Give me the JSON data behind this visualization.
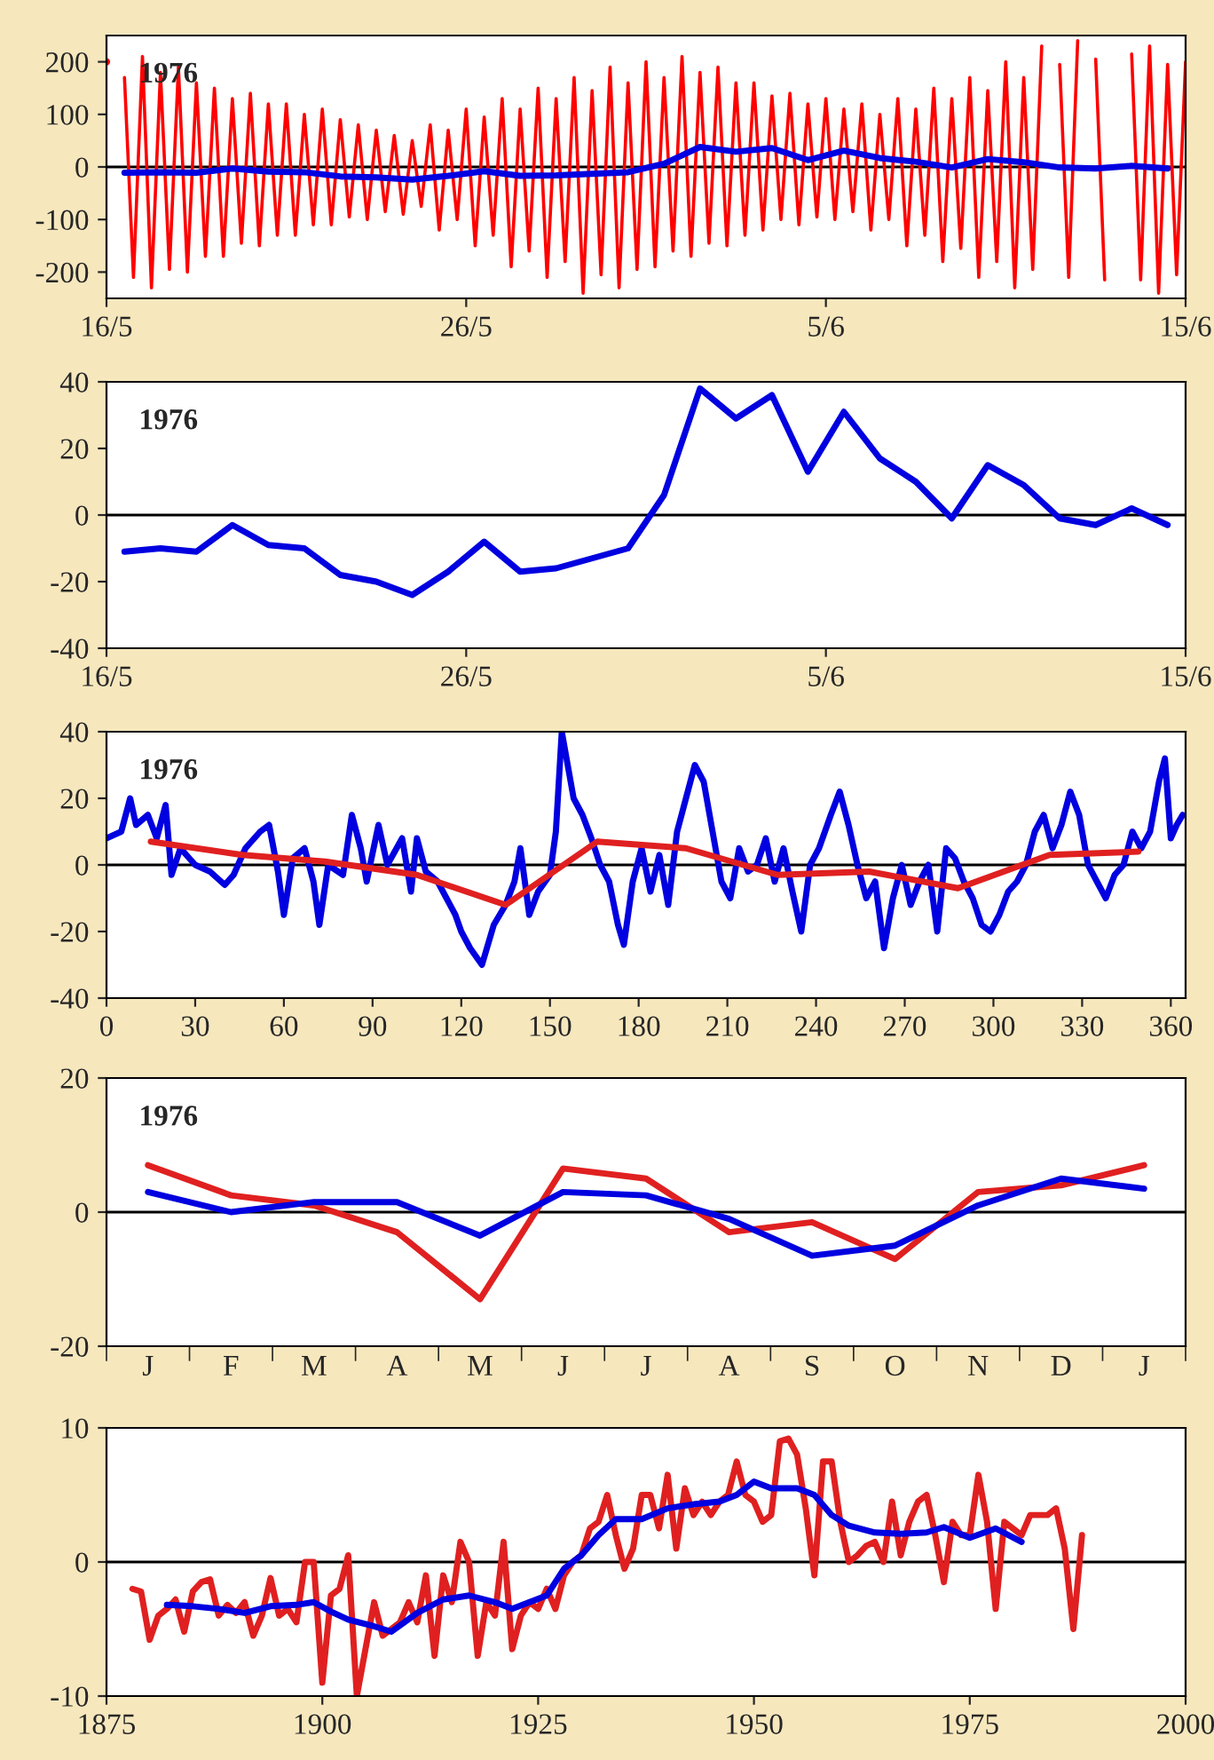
{
  "chart_data": [
    {
      "type": "line",
      "annotations": [
        "1976"
      ],
      "xlim": [
        "1976-05-16",
        "1976-06-15"
      ],
      "xticks": [
        {
          "value": "1976-05-16",
          "label": "16/5"
        },
        {
          "value": "1976-05-26",
          "label": "26/5"
        },
        {
          "value": "1976-06-05",
          "label": "5/6"
        },
        {
          "value": "1976-06-15",
          "label": "15/6"
        }
      ],
      "ylim": [
        -250,
        250
      ],
      "yticks": [
        -200,
        -100,
        0,
        100,
        200
      ],
      "ref_lines": [
        {
          "axis": "y",
          "value": 0,
          "color": "#000000"
        }
      ],
      "grid": false,
      "legend": false,
      "series": [
        {
          "color": "#ff0000",
          "x": [
            "1976-05-16T00:00",
            "1976-05-16T06:00",
            "1976-05-16T12:00",
            "1976-05-16T18:00",
            "1976-05-17T00:00",
            "1976-05-17T06:00",
            "1976-05-17T12:00",
            "1976-05-17T18:00",
            "1976-05-18T00:00",
            "1976-05-18T06:00",
            "1976-05-18T12:00",
            "1976-05-18T18:00",
            "1976-05-19T00:00",
            "1976-05-19T06:00",
            "1976-05-19T12:00",
            "1976-05-19T18:00",
            "1976-05-20T00:00",
            "1976-05-20T06:00",
            "1976-05-20T12:00",
            "1976-05-20T18:00",
            "1976-05-21T00:00",
            "1976-05-21T06:00",
            "1976-05-21T12:00",
            "1976-05-21T18:00",
            "1976-05-22T00:00",
            "1976-05-22T06:00",
            "1976-05-22T12:00",
            "1976-05-22T18:00",
            "1976-05-23T00:00",
            "1976-05-23T06:00",
            "1976-05-23T12:00",
            "1976-05-23T18:00",
            "1976-05-24T00:00",
            "1976-05-24T06:00",
            "1976-05-24T12:00",
            "1976-05-24T18:00",
            "1976-05-25T00:00",
            "1976-05-25T06:00",
            "1976-05-25T12:00",
            "1976-05-25T18:00",
            "1976-05-26T00:00",
            "1976-05-26T06:00",
            "1976-05-26T12:00",
            "1976-05-26T18:00",
            "1976-05-27T00:00",
            "1976-05-27T06:00",
            "1976-05-27T12:00",
            "1976-05-27T18:00",
            "1976-05-28T00:00",
            "1976-05-28T06:00",
            "1976-05-28T12:00",
            "1976-05-28T18:00",
            "1976-05-29T00:00",
            "1976-05-29T06:00",
            "1976-05-29T12:00",
            "1976-05-29T18:00",
            "1976-05-30T00:00",
            "1976-05-30T06:00",
            "1976-05-30T12:00",
            "1976-05-30T18:00",
            "1976-05-31T00:00",
            "1976-05-31T06:00",
            "1976-05-31T12:00",
            "1976-05-31T18:00",
            "1976-06-01T00:00",
            "1976-06-01T06:00",
            "1976-06-01T12:00",
            "1976-06-01T18:00",
            "1976-06-02T00:00",
            "1976-06-02T06:00",
            "1976-06-02T12:00",
            "1976-06-02T18:00",
            "1976-06-03T00:00",
            "1976-06-03T06:00",
            "1976-06-03T12:00",
            "1976-06-03T18:00",
            "1976-06-04T00:00",
            "1976-06-04T06:00",
            "1976-06-04T12:00",
            "1976-06-04T18:00",
            "1976-06-05T00:00",
            "1976-06-05T06:00",
            "1976-06-05T12:00",
            "1976-06-05T18:00",
            "1976-06-06T00:00",
            "1976-06-06T06:00",
            "1976-06-06T12:00",
            "1976-06-06T18:00",
            "1976-06-07T00:00",
            "1976-06-07T06:00",
            "1976-06-07T12:00",
            "1976-06-07T18:00",
            "1976-06-08T00:00",
            "1976-06-08T06:00",
            "1976-06-08T12:00",
            "1976-06-08T18:00",
            "1976-06-09T00:00",
            "1976-06-09T06:00",
            "1976-06-09T12:00",
            "1976-06-09T18:00",
            "1976-06-10T00:00",
            "1976-06-10T06:00",
            "1976-06-10T12:00",
            "1976-06-10T18:00",
            "1976-06-11T00:00",
            "1976-06-11T06:00",
            "1976-06-11T12:00",
            "1976-06-11T18:00",
            "1976-06-12T00:00",
            "1976-06-12T06:00",
            "1976-06-12T12:00",
            "1976-06-12T18:00",
            "1976-06-13T00:00",
            "1976-06-13T06:00",
            "1976-06-13T12:00",
            "1976-06-13T18:00",
            "1976-06-14T00:00",
            "1976-06-14T06:00",
            "1976-06-14T12:00",
            "1976-06-14T18:00",
            "1976-06-15T00:00"
          ],
          "values": [
            200,
            null,
            170,
            -210,
            210,
            -230,
            180,
            -195,
            190,
            -200,
            160,
            -170,
            150,
            -170,
            130,
            -145,
            140,
            -150,
            120,
            -130,
            120,
            -130,
            100,
            -110,
            110,
            -110,
            90,
            -95,
            80,
            -100,
            70,
            -85,
            60,
            -90,
            50,
            -75,
            80,
            -120,
            70,
            -100,
            110,
            -150,
            95,
            -130,
            130,
            -190,
            110,
            -160,
            150,
            -210,
            130,
            -180,
            170,
            -240,
            145,
            -205,
            190,
            -230,
            160,
            -195,
            200,
            -190,
            170,
            -160,
            210,
            -170,
            180,
            -145,
            190,
            -150,
            160,
            -130,
            160,
            -120,
            135,
            -100,
            140,
            -110,
            120,
            -95,
            130,
            -100,
            110,
            -85,
            120,
            -120,
            100,
            -100,
            130,
            -150,
            110,
            -130,
            150,
            -180,
            130,
            -155,
            170,
            -210,
            145,
            -180,
            200,
            -230,
            170,
            -195,
            230,
            null,
            195,
            -210,
            240,
            null,
            205,
            -215,
            null,
            null,
            215,
            -215,
            230,
            -240,
            195,
            -205,
            200
          ]
        },
        {
          "color": "#0000e0",
          "x": [
            "1976-05-16T12:00",
            "1976-05-17T12:00",
            "1976-05-18T12:00",
            "1976-05-19T12:00",
            "1976-05-20T12:00",
            "1976-05-21T12:00",
            "1976-05-22T12:00",
            "1976-05-23T12:00",
            "1976-05-24T12:00",
            "1976-05-25T12:00",
            "1976-05-26T12:00",
            "1976-05-27T12:00",
            "1976-05-28T12:00",
            "1976-05-29T12:00",
            "1976-05-30T12:00",
            "1976-05-31T12:00",
            "1976-06-01T12:00",
            "1976-06-02T12:00",
            "1976-06-03T12:00",
            "1976-06-04T12:00",
            "1976-06-05T12:00",
            "1976-06-06T12:00",
            "1976-06-07T12:00",
            "1976-06-08T12:00",
            "1976-06-09T12:00",
            "1976-06-10T12:00",
            "1976-06-11T12:00",
            "1976-06-12T12:00",
            "1976-06-13T12:00",
            "1976-06-14T12:00"
          ],
          "values": [
            -11,
            -10,
            -11,
            -3,
            -9,
            -10,
            -18,
            -20,
            -24,
            -17,
            -8,
            -17,
            -16,
            -13,
            -10,
            6,
            38,
            29,
            36,
            13,
            31,
            17,
            10,
            -1,
            15,
            9,
            -1,
            -3,
            2,
            -3
          ]
        }
      ]
    },
    {
      "type": "line",
      "annotations": [
        "1976"
      ],
      "xlim": [
        "1976-05-16",
        "1976-06-15"
      ],
      "xticks": [
        {
          "value": "1976-05-16",
          "label": "16/5"
        },
        {
          "value": "1976-05-26",
          "label": "26/5"
        },
        {
          "value": "1976-06-05",
          "label": "5/6"
        },
        {
          "value": "1976-06-15",
          "label": "15/6"
        }
      ],
      "ylim": [
        -40,
        40
      ],
      "yticks": [
        -40,
        -20,
        0,
        20,
        40
      ],
      "ref_lines": [
        {
          "axis": "y",
          "value": 0,
          "color": "#000000"
        }
      ],
      "grid": false,
      "legend": false,
      "series": [
        {
          "color": "#0000e0",
          "x": [
            "1976-05-16T12:00",
            "1976-05-17T12:00",
            "1976-05-18T12:00",
            "1976-05-19T12:00",
            "1976-05-20T12:00",
            "1976-05-21T12:00",
            "1976-05-22T12:00",
            "1976-05-23T12:00",
            "1976-05-24T12:00",
            "1976-05-25T12:00",
            "1976-05-26T12:00",
            "1976-05-27T12:00",
            "1976-05-28T12:00",
            "1976-05-29T12:00",
            "1976-05-30T12:00",
            "1976-05-31T12:00",
            "1976-06-01T12:00",
            "1976-06-02T12:00",
            "1976-06-03T12:00",
            "1976-06-04T12:00",
            "1976-06-05T12:00",
            "1976-06-06T12:00",
            "1976-06-07T12:00",
            "1976-06-08T12:00",
            "1976-06-09T12:00",
            "1976-06-10T12:00",
            "1976-06-11T12:00",
            "1976-06-12T12:00",
            "1976-06-13T12:00",
            "1976-06-14T12:00"
          ],
          "values": [
            -11,
            -10,
            -11,
            -3,
            -9,
            -10,
            -18,
            -20,
            -24,
            -17,
            -8,
            -17,
            -16,
            -13,
            -10,
            6,
            38,
            29,
            36,
            13,
            31,
            17,
            10,
            -1,
            15,
            9,
            -1,
            -3,
            2,
            -3
          ]
        }
      ]
    },
    {
      "type": "line",
      "annotations": [
        "1976"
      ],
      "xlim": [
        0,
        365
      ],
      "xticks": [
        0,
        30,
        60,
        90,
        120,
        150,
        180,
        210,
        240,
        270,
        300,
        330,
        360
      ],
      "ylim": [
        -40,
        40
      ],
      "yticks": [
        -40,
        -20,
        0,
        20,
        40
      ],
      "ref_lines": [
        {
          "axis": "y",
          "value": 0,
          "color": "#000000"
        }
      ],
      "grid": false,
      "legend": false,
      "series": [
        {
          "color": "#0000e0",
          "x": [
            0,
            5,
            8,
            10,
            14,
            17,
            20,
            22,
            25,
            30,
            35,
            40,
            43,
            47,
            52,
            55,
            58,
            60,
            63,
            67,
            70,
            72,
            75,
            80,
            83,
            86,
            88,
            92,
            95,
            100,
            103,
            105,
            108,
            112,
            115,
            118,
            120,
            123,
            127,
            131,
            135,
            138,
            140,
            143,
            146,
            150,
            152,
            154,
            156,
            158,
            161,
            164,
            167,
            170,
            173,
            175,
            178,
            181,
            184,
            187,
            190,
            193,
            196,
            199,
            202,
            205,
            208,
            211,
            214,
            217,
            220,
            223,
            226,
            229,
            232,
            235,
            238,
            241,
            245,
            248,
            251,
            254,
            257,
            260,
            263,
            266,
            269,
            272,
            275,
            278,
            281,
            284,
            287,
            290,
            293,
            296,
            299,
            302,
            305,
            308,
            311,
            314,
            317,
            320,
            323,
            326,
            329,
            332,
            335,
            338,
            341,
            344,
            347,
            350,
            353,
            356,
            358,
            360,
            362,
            364
          ],
          "values": [
            8,
            10,
            20,
            12,
            15,
            8,
            18,
            -3,
            5,
            0,
            -2,
            -6,
            -3,
            5,
            10,
            12,
            -2,
            -15,
            2,
            5,
            -5,
            -18,
            0,
            -3,
            15,
            5,
            -5,
            12,
            0,
            8,
            -8,
            8,
            -2,
            -5,
            -10,
            -15,
            -20,
            -25,
            -30,
            -18,
            -12,
            -5,
            5,
            -15,
            -8,
            -3,
            10,
            40,
            30,
            20,
            15,
            8,
            0,
            -5,
            -18,
            -24,
            -5,
            5,
            -8,
            3,
            -12,
            10,
            20,
            30,
            25,
            10,
            -5,
            -10,
            5,
            -2,
            0,
            8,
            -5,
            5,
            -8,
            -20,
            0,
            5,
            15,
            22,
            12,
            0,
            -10,
            -5,
            -25,
            -10,
            0,
            -12,
            -5,
            0,
            -20,
            5,
            2,
            -5,
            -10,
            -18,
            -20,
            -15,
            -8,
            -5,
            0,
            10,
            15,
            5,
            12,
            22,
            15,
            0,
            -5,
            -10,
            -3,
            0,
            10,
            5,
            10,
            25,
            32,
            8,
            12,
            15
          ]
        },
        {
          "color": "#e02020",
          "x": [
            15,
            46,
            74,
            105,
            135,
            166,
            196,
            227,
            258,
            288,
            319,
            349
          ],
          "values": [
            7,
            3,
            1,
            -3,
            -12,
            7,
            5,
            -3,
            -2,
            -7,
            3,
            4
          ]
        }
      ]
    },
    {
      "type": "line",
      "annotations": [
        "1976"
      ],
      "categories": [
        "J",
        "F",
        "M",
        "A",
        "M",
        "J",
        "J",
        "A",
        "S",
        "O",
        "N",
        "D",
        "J"
      ],
      "ylim": [
        -20,
        20
      ],
      "yticks": [
        -20,
        0,
        20
      ],
      "ref_lines": [
        {
          "axis": "y",
          "value": 0,
          "color": "#000000"
        }
      ],
      "grid": false,
      "legend": false,
      "series": [
        {
          "color": "#e02020",
          "values": [
            7,
            2.5,
            1,
            -3,
            -13,
            6.5,
            5,
            -3,
            -1.5,
            -7,
            3,
            4,
            7
          ]
        },
        {
          "color": "#0000e0",
          "values": [
            3,
            0,
            1.5,
            1.5,
            -3.5,
            3,
            2.5,
            -1,
            -6.5,
            -5,
            1,
            5,
            3.5
          ]
        }
      ]
    },
    {
      "type": "line",
      "xlim": [
        1875,
        2000
      ],
      "xticks": [
        1875,
        1900,
        1925,
        1950,
        1975,
        2000
      ],
      "ylim": [
        -10,
        10
      ],
      "yticks": [
        -10,
        0,
        10
      ],
      "ref_lines": [
        {
          "axis": "y",
          "value": 0,
          "color": "#000000"
        }
      ],
      "grid": false,
      "legend": false,
      "series": [
        {
          "color": "#e02020",
          "x": [
            1878,
            1879,
            1880,
            1881,
            1882,
            1883,
            1884,
            1885,
            1886,
            1887,
            1888,
            1889,
            1890,
            1891,
            1892,
            1893,
            1894,
            1895,
            1896,
            1897,
            1898,
            1899,
            1900,
            1901,
            1902,
            1903,
            1904,
            1905,
            1906,
            1907,
            1908,
            1909,
            1910,
            1911,
            1912,
            1913,
            1914,
            1915,
            1916,
            1917,
            1918,
            1919,
            1920,
            1921,
            1922,
            1923,
            1924,
            1925,
            1926,
            1927,
            1928,
            1929,
            1930,
            1931,
            1932,
            1933,
            1934,
            1935,
            1936,
            1937,
            1938,
            1939,
            1940,
            1941,
            1942,
            1943,
            1944,
            1945,
            1946,
            1947,
            1948,
            1949,
            1950,
            1951,
            1952,
            1953,
            1954,
            1955,
            1956,
            1957,
            1958,
            1959,
            1960,
            1961,
            1962,
            1963,
            1964,
            1965,
            1966,
            1967,
            1968,
            1969,
            1970,
            1971,
            1972,
            1973,
            1974,
            1975,
            1976,
            1977,
            1978,
            1979,
            1980,
            1981,
            1982,
            1983,
            1984,
            1985,
            1986,
            1987,
            1988
          ],
          "values": [
            -2,
            -2.2,
            -5.8,
            -4,
            -3.5,
            -2.8,
            -5.2,
            -2.2,
            -1.5,
            -1.3,
            -4,
            -3.2,
            -3.8,
            -3,
            -5.5,
            -4,
            -1.2,
            -4,
            -3.5,
            -4.5,
            0,
            0,
            -9,
            -2.5,
            -2,
            0.5,
            -10,
            -6.5,
            -3,
            -5.5,
            -5,
            -4.5,
            -3,
            -4.5,
            -1,
            -7,
            -1,
            -3,
            1.5,
            0,
            -7,
            -3,
            -4,
            1.5,
            -6.5,
            -4,
            -3,
            -3.5,
            -2,
            -3.5,
            -1,
            0,
            0.5,
            2.5,
            3,
            5,
            2,
            -0.5,
            1,
            5,
            5,
            2.5,
            6.5,
            1,
            5.5,
            3.5,
            4.5,
            3.5,
            4.5,
            5,
            7.5,
            5,
            4.5,
            3,
            3.5,
            9,
            9.2,
            8,
            4,
            -1,
            7.5,
            7.5,
            3,
            0,
            0.5,
            1.2,
            1.5,
            0,
            4.5,
            0.5,
            3,
            4.5,
            5,
            2,
            -1.5,
            3,
            2,
            2,
            6.5,
            3,
            -3.5,
            3,
            2.5,
            2,
            3.5,
            3.5,
            3.5,
            4,
            1,
            -5,
            2
          ]
        },
        {
          "color": "#0000e0",
          "x": [
            1882,
            1885,
            1888,
            1891,
            1894,
            1897,
            1899,
            1901,
            1903,
            1906,
            1908,
            1911,
            1914,
            1917,
            1920,
            1922,
            1924,
            1926,
            1928,
            1930,
            1932,
            1934,
            1937,
            1940,
            1943,
            1946,
            1948,
            1950,
            1952,
            1955,
            1957,
            1959,
            1961,
            1964,
            1967,
            1970,
            1972,
            1975,
            1978,
            1981
          ],
          "values": [
            -3.2,
            -3.3,
            -3.5,
            -3.8,
            -3.3,
            -3.2,
            -3,
            -3.7,
            -4.3,
            -4.8,
            -5.2,
            -3.8,
            -2.8,
            -2.5,
            -3,
            -3.5,
            -3,
            -2.5,
            -0.5,
            0.5,
            2,
            3.2,
            3.2,
            4,
            4.3,
            4.5,
            5,
            6,
            5.5,
            5.5,
            5,
            3.5,
            2.7,
            2.2,
            2.1,
            2.2,
            2.6,
            1.8,
            2.5,
            1.5
          ]
        }
      ]
    }
  ]
}
